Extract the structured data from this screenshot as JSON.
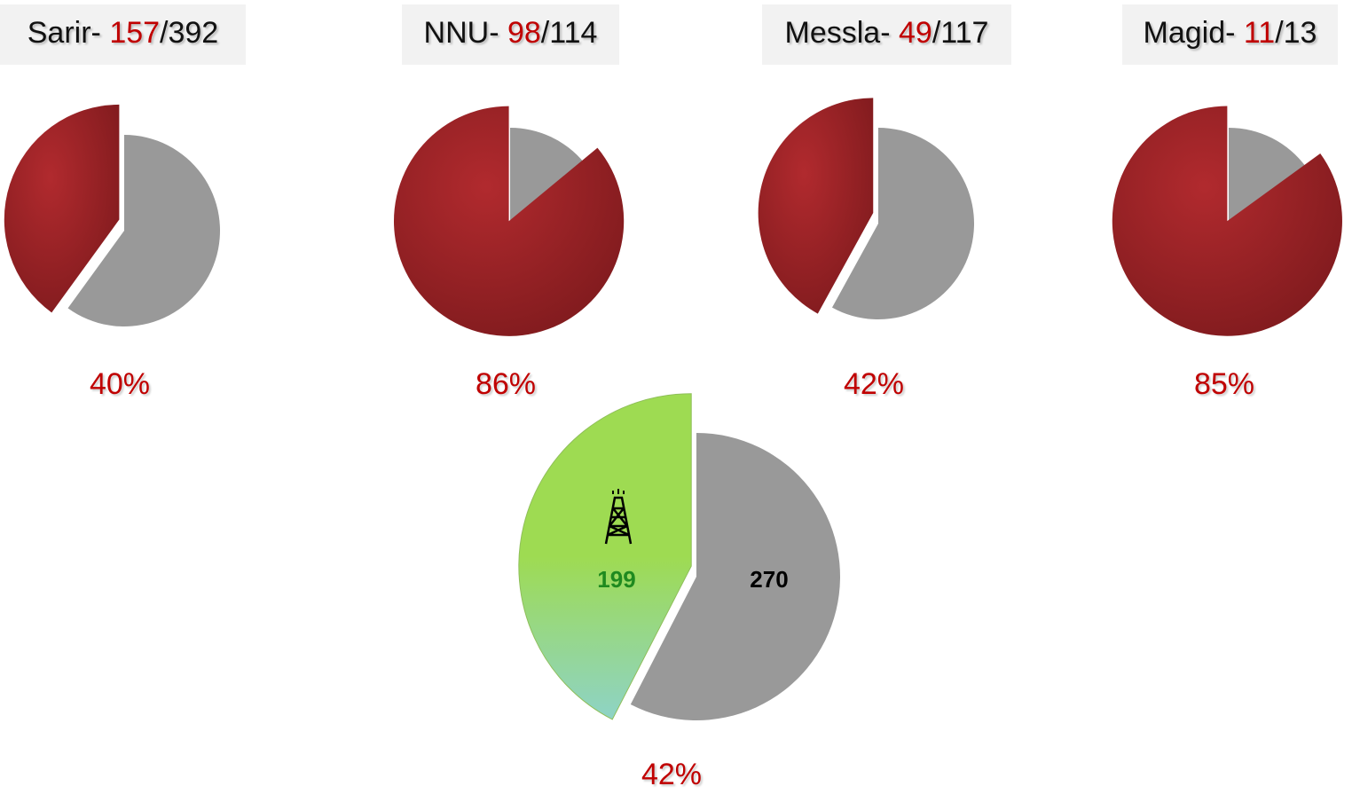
{
  "chart_data": [
    {
      "type": "pie",
      "title_name": "Sarir- ",
      "title_count": "157",
      "title_total": "/392",
      "values": [
        40,
        60
      ],
      "value_labels": [
        "40%",
        null
      ],
      "colors": [
        "#a32327",
        "#999999"
      ]
    },
    {
      "type": "pie",
      "title_name": "NNU- ",
      "title_count": "98",
      "title_total": "/114",
      "values": [
        86,
        14
      ],
      "value_labels": [
        "86%",
        null
      ],
      "colors": [
        "#a32327",
        "#999999"
      ]
    },
    {
      "type": "pie",
      "title_name": "Messla- ",
      "title_count": "49",
      "title_total": "/117",
      "values": [
        42,
        58
      ],
      "value_labels": [
        "42%",
        null
      ],
      "colors": [
        "#a32327",
        "#999999"
      ]
    },
    {
      "type": "pie",
      "title_name": "Magid- ",
      "title_count": "11",
      "title_total": "/13",
      "values": [
        85,
        15
      ],
      "value_labels": [
        "85%",
        null
      ],
      "colors": [
        "#a32327",
        "#999999"
      ]
    },
    {
      "type": "pie",
      "values": [
        199,
        270
      ],
      "annotation": "42%",
      "colors": [
        "#9edb52",
        "#999999"
      ]
    }
  ]
}
